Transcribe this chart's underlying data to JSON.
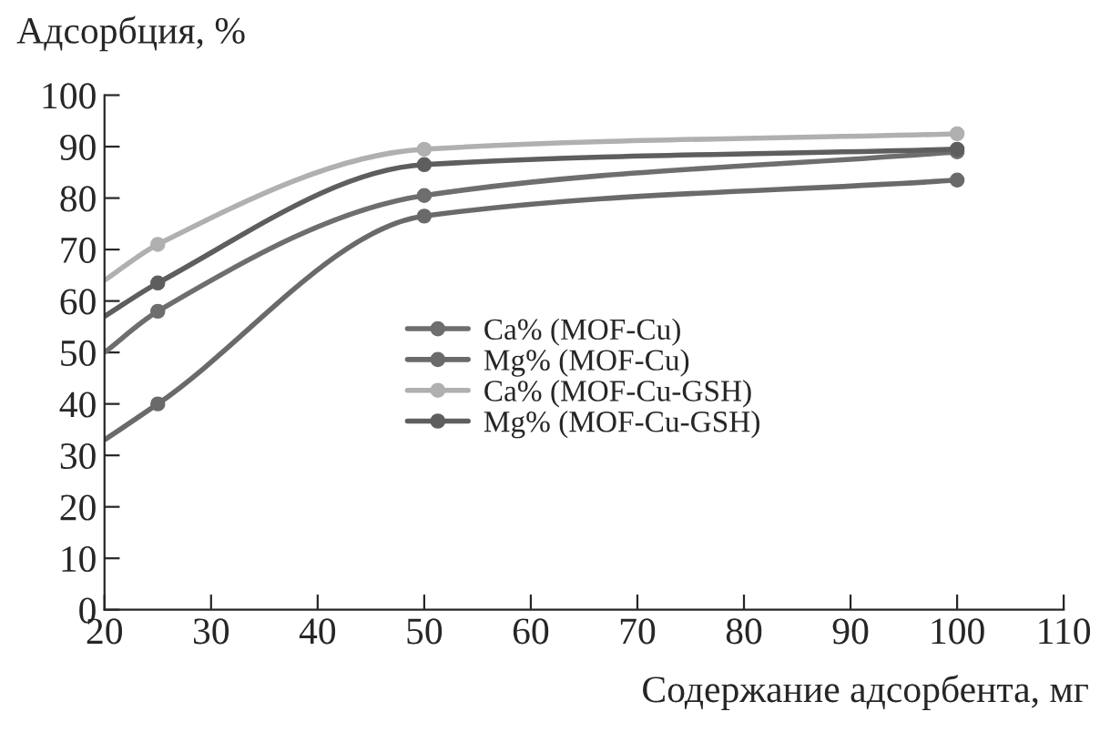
{
  "chart_data": {
    "type": "line",
    "xlabel": "Содержание адсорбента, мг",
    "ylabel": "Адсорбция, %",
    "xlim": [
      20,
      110
    ],
    "xticks": [
      20,
      30,
      40,
      50,
      60,
      70,
      80,
      90,
      100,
      110
    ],
    "ylim": [
      0,
      100
    ],
    "yticks": [
      0,
      10,
      20,
      30,
      40,
      50,
      60,
      70,
      80,
      90,
      100
    ],
    "grid": false,
    "legend": "right",
    "marker": "circle",
    "line_style": "solid",
    "series": [
      {
        "name": "Ca% (MOF-Cu)",
        "color": "#6e6e6e",
        "x": [
          20,
          25,
          50,
          100
        ],
        "values": [
          50,
          58,
          80.5,
          89
        ]
      },
      {
        "name": "Mg% (MOF-Cu)",
        "color": "#6a6a6a",
        "x": [
          20,
          25,
          50,
          100
        ],
        "values": [
          33,
          40,
          76.5,
          83.5
        ]
      },
      {
        "name": "Ca% (MOF-Cu-GSH)",
        "color": "#b0b0b0",
        "x": [
          20,
          25,
          50,
          100
        ],
        "values": [
          64,
          71,
          89.5,
          92.5
        ]
      },
      {
        "name": "Mg% (MOF-Cu-GSH)",
        "color": "#5e5e5e",
        "x": [
          20,
          25,
          50,
          100
        ],
        "values": [
          57,
          63.5,
          86.5,
          89.5
        ]
      }
    ]
  }
}
